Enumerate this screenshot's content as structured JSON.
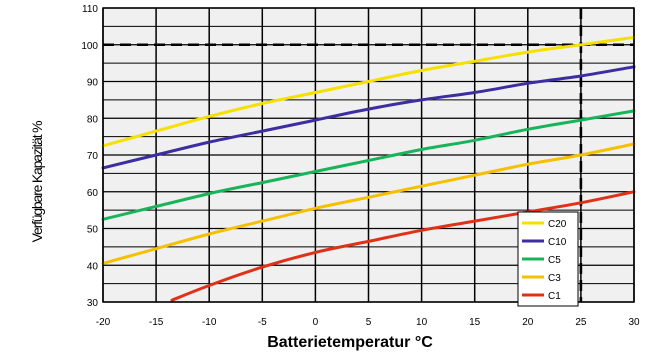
{
  "chart_data": {
    "type": "line",
    "xlabel": "Batterietemperatur °C",
    "ylabel": "Verfügbare Kapazität %",
    "xlim": [
      -20,
      30
    ],
    "ylim": [
      30,
      110
    ],
    "xticks": [
      -20,
      -15,
      -10,
      -5,
      0,
      5,
      10,
      15,
      20,
      25,
      30
    ],
    "yticks": [
      30,
      40,
      50,
      60,
      70,
      80,
      90,
      100,
      110
    ],
    "grid": true,
    "legend_position": "bottom-right",
    "reference_lines": [
      {
        "axis": "y",
        "value": 100,
        "style": "dashed"
      },
      {
        "axis": "x",
        "value": 25,
        "style": "dashed"
      }
    ],
    "series": [
      {
        "name": "C20",
        "color": "#f5e000",
        "x": [
          -20,
          -15,
          -10,
          -5,
          0,
          5,
          10,
          15,
          20,
          25,
          30
        ],
        "y": [
          72.5,
          76.5,
          80.5,
          84,
          87,
          90,
          93,
          95.5,
          98,
          100,
          102
        ]
      },
      {
        "name": "C10",
        "color": "#3c2ea0",
        "x": [
          -20,
          -15,
          -10,
          -5,
          0,
          5,
          10,
          15,
          20,
          25,
          30
        ],
        "y": [
          66.5,
          70,
          73.5,
          76.5,
          79.5,
          82.5,
          85,
          87,
          89.5,
          91.5,
          94
        ]
      },
      {
        "name": "C5",
        "color": "#18b45a",
        "x": [
          -20,
          -15,
          -10,
          -5,
          0,
          5,
          10,
          15,
          20,
          25,
          30
        ],
        "y": [
          52.5,
          56,
          59.5,
          62.5,
          65.5,
          68.5,
          71.5,
          74,
          77,
          79.5,
          82
        ]
      },
      {
        "name": "C3",
        "color": "#f5c000",
        "x": [
          -20,
          -15,
          -10,
          -5,
          0,
          5,
          10,
          15,
          20,
          25,
          30
        ],
        "y": [
          40.5,
          44.5,
          48.5,
          52,
          55.5,
          58.5,
          61.5,
          64.5,
          67.5,
          70,
          73
        ]
      },
      {
        "name": "C1",
        "color": "#e03018",
        "x": [
          -13.5,
          -10,
          -5,
          0,
          5,
          10,
          15,
          20,
          25,
          30
        ],
        "y": [
          30.5,
          34.5,
          39.5,
          43.5,
          46.5,
          49.5,
          52,
          54.5,
          57,
          60
        ]
      }
    ]
  }
}
